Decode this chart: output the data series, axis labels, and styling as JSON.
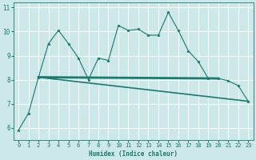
{
  "xlabel": "Humidex (Indice chaleur)",
  "background_color": "#cce8e8",
  "grid_color": "#ffffff",
  "line_color": "#1a7a6e",
  "xlim": [
    -0.5,
    23.5
  ],
  "ylim": [
    5.5,
    11.2
  ],
  "yticks": [
    6,
    7,
    8,
    9,
    10,
    11
  ],
  "xticks": [
    0,
    1,
    2,
    3,
    4,
    5,
    6,
    7,
    8,
    9,
    10,
    11,
    12,
    13,
    14,
    15,
    16,
    17,
    18,
    19,
    20,
    21,
    22,
    23
  ],
  "curve1_x": [
    0,
    1,
    2,
    3,
    4,
    5,
    6,
    7,
    8,
    9,
    10,
    11,
    12,
    13,
    14,
    15,
    16,
    17,
    18,
    19,
    20,
    21,
    22,
    23
  ],
  "curve1_y": [
    5.9,
    6.6,
    8.1,
    9.5,
    10.05,
    9.5,
    8.9,
    8.0,
    8.9,
    8.8,
    10.25,
    10.05,
    10.1,
    9.85,
    9.85,
    10.8,
    10.05,
    9.2,
    8.75,
    8.05,
    8.05,
    7.95,
    7.75,
    7.1
  ],
  "curve2_x": [
    2,
    23
  ],
  "curve2_y": [
    8.1,
    7.1
  ],
  "curve3_x": [
    2,
    20
  ],
  "curve3_y": [
    8.1,
    8.05
  ],
  "xlabel_fontsize": 5.5,
  "tick_fontsize": 5.0
}
